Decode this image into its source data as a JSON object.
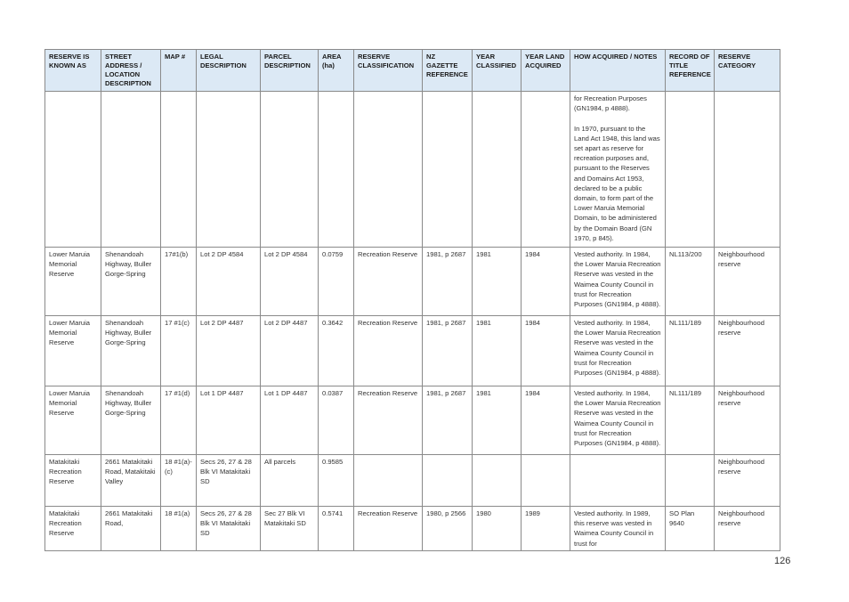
{
  "table": {
    "headers": [
      "RESERVE IS KNOWN AS",
      "STREET ADDRESS / LOCATION DESCRIPTION",
      "MAP #",
      "LEGAL DESCRIPTION",
      "PARCEL DESCRIPTION",
      "AREA (ha)",
      "RESERVE CLASSIFICATION",
      "NZ GAZETTE REFERENCE",
      "YEAR CLASSIFIED",
      "YEAR LAND ACQUIRED",
      "HOW ACQUIRED / NOTES",
      "RECORD OF TITLE REFERENCE",
      "RESERVE CATEGORY"
    ],
    "rows": [
      [
        "",
        "",
        "",
        "",
        "",
        "",
        "",
        "",
        "",
        "",
        "for Recreation Purposes (GN1984, p 4888).\n\nIn 1970, pursuant to the Land Act 1948, this land was set apart as reserve for recreation purposes and, pursuant to the Reserves and Domains Act 1953, declared to be a public domain, to form part of the Lower Maruia Memorial Domain, to be administered by the Domain Board (GN 1970, p 845).",
        "",
        ""
      ],
      [
        "Lower Maruia Memorial Reserve",
        "Shenandoah Highway, Buller Gorge-Spring",
        "17#1(b)",
        "Lot 2 DP 4584",
        "Lot 2 DP 4584",
        "0.0759",
        "Recreation Reserve",
        "1981, p 2687",
        "1981",
        "1984",
        "Vested authority. In 1984, the Lower Maruia Recreation Reserve was vested in the Waimea County Council in trust for Recreation Purposes (GN1984, p 4888).",
        "NL113/200",
        "Neighbourhood reserve"
      ],
      [
        "Lower Maruia Memorial Reserve",
        "Shenandoah Highway, Buller Gorge-Spring",
        "17 #1(c)",
        "Lot 2 DP 4487",
        "Lot 2 DP 4487",
        "0.3642",
        "Recreation Reserve",
        "1981, p 2687",
        "1981",
        "1984",
        "Vested authority. In 1984, the Lower Maruia Recreation Reserve was vested in the Waimea County Council in trust for Recreation Purposes (GN1984, p 4888).",
        "NL111/189",
        "Neighbourhood reserve"
      ],
      [
        "Lower Maruia Memorial Reserve",
        "Shenandoah Highway, Buller Gorge-Spring",
        "17 #1(d)",
        "Lot 1 DP 4487",
        "Lot 1 DP 4487",
        "0.0387",
        "Recreation Reserve",
        "1981, p 2687",
        "1981",
        "1984",
        "Vested authority. In 1984, the Lower Maruia Recreation Reserve was vested in the Waimea County Council in trust for Recreation Purposes (GN1984, p 4888).",
        "NL111/189",
        "Neighbourhood reserve"
      ],
      [
        "Matakitaki Recreation Reserve",
        "2661 Matakitaki Road, Matakitaki Valley",
        "18 #1(a)-(c)",
        "Secs 26, 27 & 28 Blk VI Matakitaki SD",
        "All parcels",
        "0.9585",
        "",
        "",
        "",
        "",
        "",
        "",
        "Neighbourhood reserve"
      ],
      [
        "Matakitaki Recreation Reserve",
        "2661 Matakitaki Road,",
        "18 #1(a)",
        "Secs 26, 27 & 28 Blk VI Matakitaki SD",
        "Sec 27 Blk VI Matakitaki SD",
        "0.5741",
        "Recreation Reserve",
        "1980, p 2566",
        "1980",
        "1989",
        "Vested authority. In 1989, this reserve was vested in Waimea County Council in trust for",
        "SO Plan 9640",
        "Neighbourhood reserve"
      ]
    ]
  },
  "page_number": "126"
}
